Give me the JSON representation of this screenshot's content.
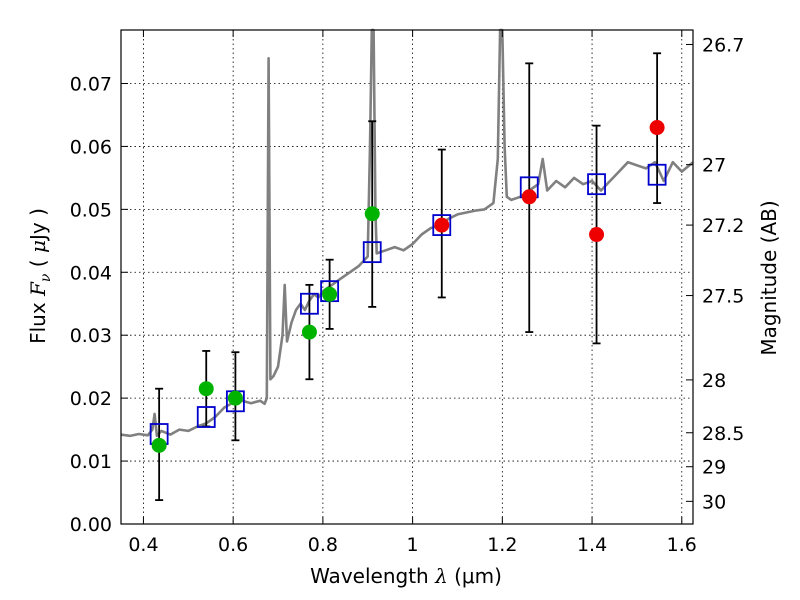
{
  "chart_data": {
    "type": "scatter",
    "xlabel": "Wavelength  λ (μm)",
    "xlabel_parts": {
      "text": "Wavelength ",
      "symbol": "λ",
      "unit": "(μm)"
    },
    "ylabel": "Flux  Fν  ( μJy )",
    "ylabel_parts": {
      "text": "Flux ",
      "symbol": "F",
      "sub": "ν",
      "unit_open": " ( ",
      "mu": "μ",
      "unit": "Jy",
      "unit_close": " )"
    },
    "y2label": "Magnitude (AB)",
    "xlim": [
      0.35,
      1.625
    ],
    "ylim": [
      0.0,
      0.0785
    ],
    "grid": true,
    "xticks": [
      0.4,
      0.6,
      0.8,
      1.0,
      1.2,
      1.4,
      1.6
    ],
    "xtick_labels": [
      "0.4",
      "0.6",
      "0.8",
      "1",
      "1.2",
      "1.4",
      "1.6"
    ],
    "yticks": [
      0.0,
      0.01,
      0.02,
      0.03,
      0.04,
      0.05,
      0.06,
      0.07
    ],
    "ytick_labels": [
      "0.00",
      "0.01",
      "0.02",
      "0.03",
      "0.04",
      "0.05",
      "0.06",
      "0.07"
    ],
    "y2ticks": [
      {
        "label": "26.7",
        "flux": 0.0762
      },
      {
        "label": "27",
        "flux": 0.0571
      },
      {
        "label": "27.2",
        "flux": 0.0475
      },
      {
        "label": "27.5",
        "flux": 0.0363
      },
      {
        "label": "28",
        "flux": 0.0229
      },
      {
        "label": "28.5",
        "flux": 0.0145
      },
      {
        "label": "29",
        "flux": 0.0091
      },
      {
        "label": "30",
        "flux": 0.0036
      }
    ],
    "colors": {
      "spectrum": "#808080",
      "model_box": "#0000cc",
      "green": "#00b300",
      "red": "#ee0000",
      "errorbar": "#000000"
    },
    "series": [
      {
        "name": "model-spectrum",
        "kind": "line",
        "points": [
          [
            0.35,
            0.0142
          ],
          [
            0.37,
            0.014
          ],
          [
            0.39,
            0.0143
          ],
          [
            0.41,
            0.0141
          ],
          [
            0.42,
            0.015
          ],
          [
            0.425,
            0.0175
          ],
          [
            0.43,
            0.014
          ],
          [
            0.44,
            0.0148
          ],
          [
            0.46,
            0.0142
          ],
          [
            0.48,
            0.015
          ],
          [
            0.5,
            0.0148
          ],
          [
            0.52,
            0.0155
          ],
          [
            0.54,
            0.016
          ],
          [
            0.56,
            0.017
          ],
          [
            0.58,
            0.0185
          ],
          [
            0.6,
            0.0193
          ],
          [
            0.62,
            0.0196
          ],
          [
            0.64,
            0.0192
          ],
          [
            0.66,
            0.0196
          ],
          [
            0.67,
            0.0191
          ],
          [
            0.675,
            0.02
          ],
          [
            0.679,
            0.074
          ],
          [
            0.683,
            0.023
          ],
          [
            0.69,
            0.0235
          ],
          [
            0.7,
            0.025
          ],
          [
            0.71,
            0.03
          ],
          [
            0.715,
            0.038
          ],
          [
            0.72,
            0.029
          ],
          [
            0.73,
            0.032
          ],
          [
            0.74,
            0.034
          ],
          [
            0.75,
            0.035
          ],
          [
            0.76,
            0.034
          ],
          [
            0.77,
            0.0355
          ],
          [
            0.78,
            0.0365
          ],
          [
            0.79,
            0.036
          ],
          [
            0.8,
            0.037
          ],
          [
            0.82,
            0.038
          ],
          [
            0.84,
            0.039
          ],
          [
            0.86,
            0.04
          ],
          [
            0.88,
            0.041
          ],
          [
            0.9,
            0.0425
          ],
          [
            0.905,
            0.06
          ],
          [
            0.909,
            0.0785
          ],
          [
            0.913,
            0.0785
          ],
          [
            0.917,
            0.05
          ],
          [
            0.92,
            0.043
          ],
          [
            0.94,
            0.0435
          ],
          [
            0.96,
            0.044
          ],
          [
            0.98,
            0.0435
          ],
          [
            1.0,
            0.0445
          ],
          [
            1.02,
            0.046
          ],
          [
            1.04,
            0.047
          ],
          [
            1.06,
            0.0475
          ],
          [
            1.08,
            0.0485
          ],
          [
            1.1,
            0.0492
          ],
          [
            1.12,
            0.0495
          ],
          [
            1.14,
            0.0498
          ],
          [
            1.16,
            0.05
          ],
          [
            1.18,
            0.051
          ],
          [
            1.19,
            0.058
          ],
          [
            1.195,
            0.0785
          ],
          [
            1.2,
            0.0785
          ],
          [
            1.205,
            0.06
          ],
          [
            1.21,
            0.052
          ],
          [
            1.22,
            0.0515
          ],
          [
            1.24,
            0.052
          ],
          [
            1.26,
            0.053
          ],
          [
            1.28,
            0.054
          ],
          [
            1.29,
            0.058
          ],
          [
            1.3,
            0.053
          ],
          [
            1.32,
            0.0545
          ],
          [
            1.34,
            0.0535
          ],
          [
            1.36,
            0.055
          ],
          [
            1.38,
            0.054
          ],
          [
            1.4,
            0.0545
          ],
          [
            1.42,
            0.053
          ],
          [
            1.44,
            0.0545
          ],
          [
            1.46,
            0.056
          ],
          [
            1.48,
            0.0575
          ],
          [
            1.5,
            0.057
          ],
          [
            1.52,
            0.0565
          ],
          [
            1.54,
            0.0575
          ],
          [
            1.56,
            0.0545
          ],
          [
            1.58,
            0.0575
          ],
          [
            1.6,
            0.056
          ],
          [
            1.625,
            0.0575
          ]
        ]
      },
      {
        "name": "model-photometry",
        "kind": "open-square",
        "x": [
          0.435,
          0.54,
          0.605,
          0.77,
          0.815,
          0.91,
          1.065,
          1.26,
          1.41,
          1.545
        ],
        "y": [
          0.0143,
          0.017,
          0.0195,
          0.035,
          0.037,
          0.0432,
          0.0475,
          0.0535,
          0.054,
          0.0555
        ]
      },
      {
        "name": "observed-green",
        "kind": "filled-circle",
        "x": [
          0.435,
          0.54,
          0.605,
          0.77,
          0.815,
          0.91
        ],
        "y": [
          0.0125,
          0.0215,
          0.02,
          0.0305,
          0.0365,
          0.0493
        ]
      },
      {
        "name": "observed-red",
        "kind": "filled-circle",
        "x": [
          1.065,
          1.26,
          1.41,
          1.545
        ],
        "y": [
          0.0475,
          0.052,
          0.046,
          0.063
        ]
      },
      {
        "name": "errorbars",
        "kind": "errorbar",
        "x": [
          0.435,
          0.54,
          0.605,
          0.77,
          0.815,
          0.91,
          1.065,
          1.26,
          1.41,
          1.545
        ],
        "low": [
          0.0038,
          0.0155,
          0.0133,
          0.023,
          0.031,
          0.0345,
          0.036,
          0.0305,
          0.0287,
          0.051
        ],
        "high": [
          0.0215,
          0.0275,
          0.0273,
          0.038,
          0.042,
          0.064,
          0.0595,
          0.0732,
          0.0633,
          0.0748
        ]
      }
    ]
  }
}
